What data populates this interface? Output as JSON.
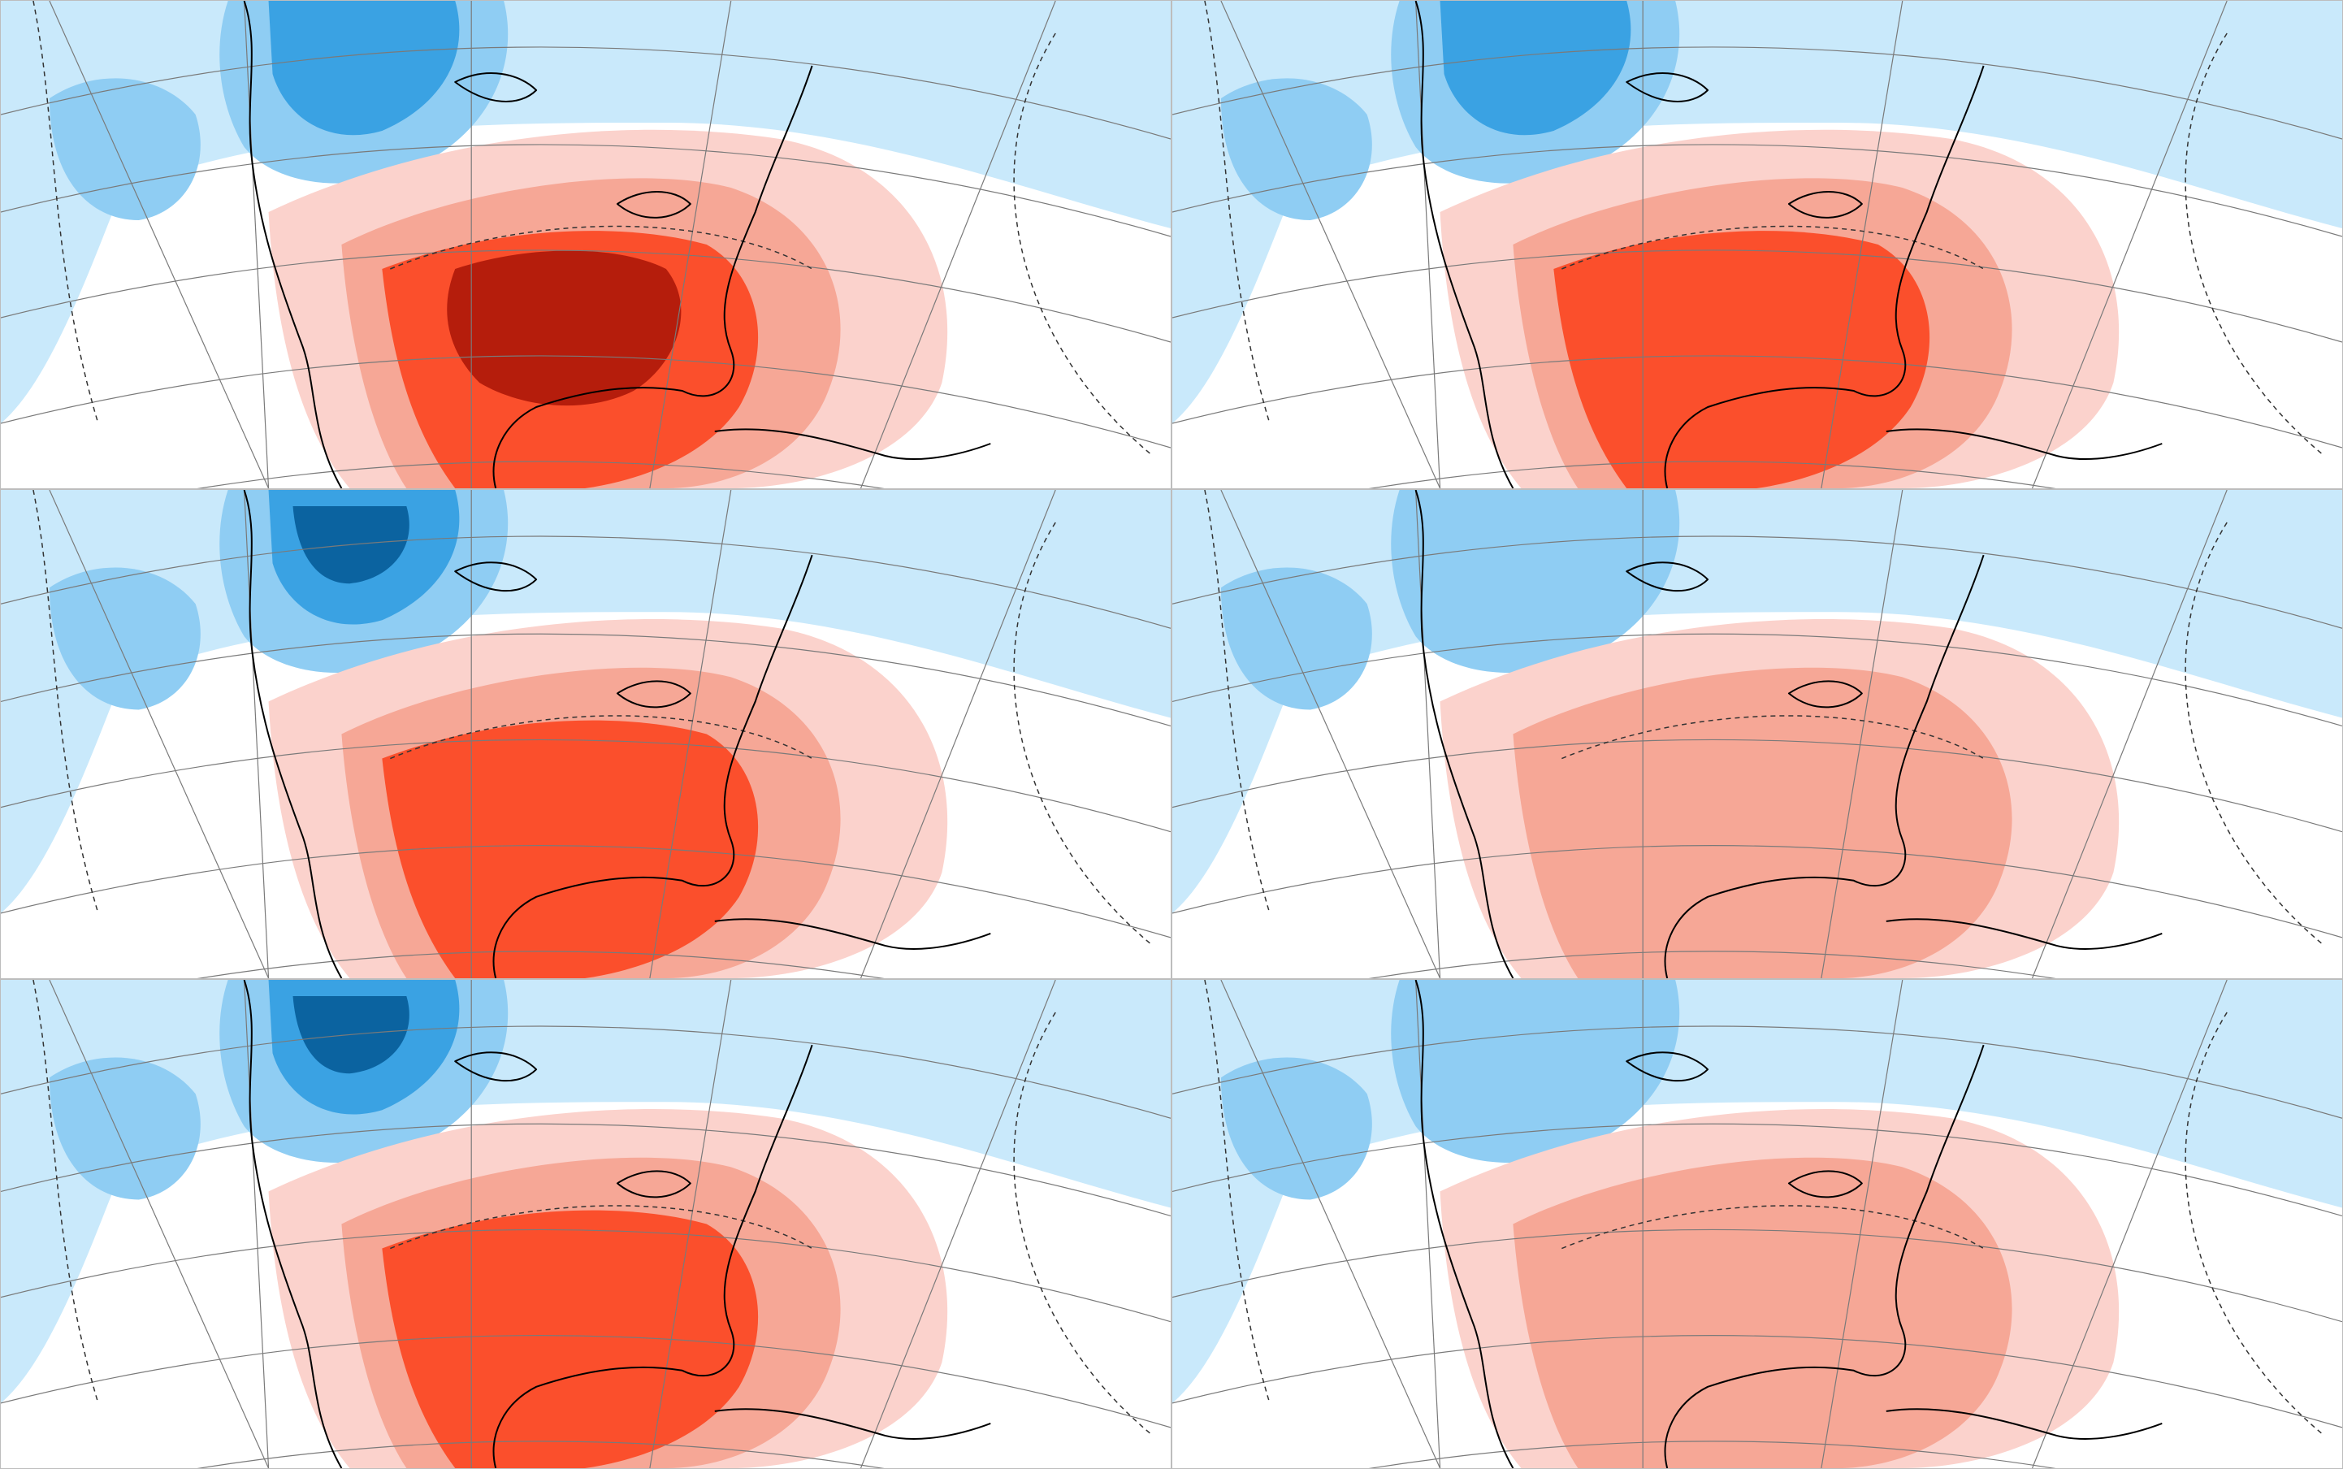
{
  "layout": {
    "rows": 3,
    "columns": 2,
    "panel_count": 6
  },
  "colors": {
    "cold_3": "#0b63a0",
    "cold_2": "#3aa2e3",
    "cold_1": "#8fcdf3",
    "cold_0": "#c9e9fb",
    "neutral": "#ffffff",
    "warm_0": "#fbd2cc",
    "warm_1": "#f6a796",
    "warm_2": "#fb4f2c",
    "warm_3": "#b51d0c",
    "coastline": "#000000",
    "graticule": "#7a7a7a"
  },
  "panels": [
    {
      "id": "row1-left",
      "warm_intensity": 3,
      "cold_intensity": 2
    },
    {
      "id": "row1-right",
      "warm_intensity": 2,
      "cold_intensity": 2
    },
    {
      "id": "row2-left",
      "warm_intensity": 2,
      "cold_intensity": 3
    },
    {
      "id": "row2-right",
      "warm_intensity": 1,
      "cold_intensity": 1
    },
    {
      "id": "row3-left",
      "warm_intensity": 2,
      "cold_intensity": 3
    },
    {
      "id": "row3-right",
      "warm_intensity": 1,
      "cold_intensity": 1
    }
  ]
}
